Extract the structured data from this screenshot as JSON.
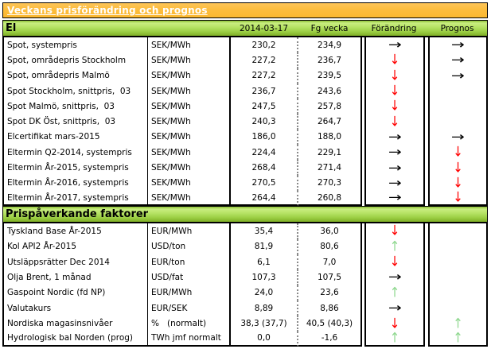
{
  "title": "Veckans prisförändring och prognos",
  "columns": {
    "date": "2014-03-17",
    "prev": "Fg vecka",
    "change": "Förändring",
    "forecast": "Prognos"
  },
  "arrows": {
    "right": "→",
    "down": "↓",
    "up": "↑"
  },
  "colors": {
    "title_bg": "#fbbc38",
    "section_bg": "#a6d74b",
    "right": "#000000",
    "down": "#ff0000",
    "up": "#90d890"
  },
  "sections": [
    {
      "name": "El",
      "rows": [
        {
          "label": "Spot, systempris",
          "unit": "SEK/MWh",
          "current": "230,2",
          "prev": "234,9",
          "change": "right",
          "forecast": "right"
        },
        {
          "label": "Spot, områdepris Stockholm",
          "unit": "SEK/MWh",
          "current": "227,2",
          "prev": "236,7",
          "change": "down",
          "forecast": "right"
        },
        {
          "label": "Spot, områdepris Malmö",
          "unit": "SEK/MWh",
          "current": "227,2",
          "prev": "239,5",
          "change": "down",
          "forecast": "right"
        },
        {
          "label": "Spot Stockholm, snittpris,  03",
          "unit": "SEK/MWh",
          "current": "236,7",
          "prev": "243,6",
          "change": "down",
          "forecast": "none"
        },
        {
          "label": "Spot Malmö, snittpris,  03",
          "unit": "SEK/MWh",
          "current": "247,5",
          "prev": "257,8",
          "change": "down",
          "forecast": "none"
        },
        {
          "label": "Spot DK Öst, snittpris,  03",
          "unit": "SEK/MWh",
          "current": "240,3",
          "prev": "264,7",
          "change": "down",
          "forecast": "none"
        },
        {
          "label": "Elcertifikat mars-2015",
          "unit": "SEK/MWh",
          "current": "186,0",
          "prev": "188,0",
          "change": "right",
          "forecast": "right"
        },
        {
          "label": "Eltermin Q2-2014, systempris",
          "unit": "SEK/MWh",
          "current": "224,4",
          "prev": "229,1",
          "change": "right",
          "forecast": "down"
        },
        {
          "label": "Eltermin År-2015, systempris",
          "unit": "SEK/MWh",
          "current": "268,4",
          "prev": "271,4",
          "change": "right",
          "forecast": "down"
        },
        {
          "label": "Eltermin År-2016, systempris",
          "unit": "SEK/MWh",
          "current": "270,5",
          "prev": "270,3",
          "change": "right",
          "forecast": "down"
        },
        {
          "label": "Eltermin År-2017, systempris",
          "unit": "SEK/MWh",
          "current": "264,4",
          "prev": "260,8",
          "change": "right",
          "forecast": "down"
        }
      ]
    },
    {
      "name": "Prispåverkande faktorer",
      "rows": [
        {
          "label": "Tyskland Base År-2015",
          "unit": "EUR/MWh",
          "current": "35,4",
          "prev": "36,0",
          "change": "down",
          "forecast": "none"
        },
        {
          "label": "Kol API2 År-2015",
          "unit": "USD/ton",
          "current": "81,9",
          "prev": "80,6",
          "change": "up",
          "forecast": "none"
        },
        {
          "label": "Utsläppsrätter Dec 2014",
          "unit": "EUR/ton",
          "current": "6,1",
          "prev": "7,0",
          "change": "down",
          "forecast": "none"
        },
        {
          "label": "Olja Brent, 1 månad",
          "unit": "USD/fat",
          "current": "107,3",
          "prev": "107,5",
          "change": "right",
          "forecast": "none"
        },
        {
          "label": "Gaspoint Nordic (fd NP)",
          "unit": "EUR/MWh",
          "current": "24,0",
          "prev": "23,6",
          "change": "up",
          "forecast": "none"
        },
        {
          "label": "Valutakurs",
          "unit": "EUR/SEK",
          "current": "8,89",
          "prev": "8,86",
          "change": "right",
          "forecast": "none"
        },
        {
          "label": "Nordiska magasinsnivåer",
          "unit": "%   (normalt)",
          "current": "38,3 (37,7)",
          "prev": "40,5 (40,3)",
          "change": "down",
          "forecast": "up"
        },
        {
          "label": "Hydrologisk bal Norden (prog)",
          "unit": "TWh jmf normalt",
          "current": "0,0",
          "prev": "-1,6",
          "change": "up",
          "forecast": "up"
        }
      ]
    }
  ]
}
